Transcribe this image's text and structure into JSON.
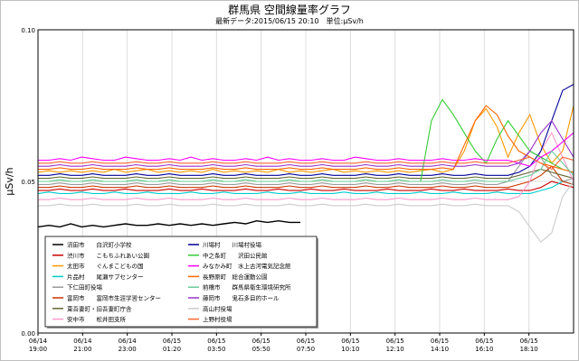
{
  "page": {
    "title": "群馬県 空間線量率グラフ",
    "subtitle": "最新データ:2015/06/15 20:10　単位:μSv/h"
  },
  "colors": {
    "background": "#ffffff",
    "grid": "#dcdcdc",
    "axis": "#000000"
  },
  "chart_data": {
    "type": "line",
    "title": "群馬県 空間線量率グラフ",
    "subtitle": "最新データ:2015/06/15 20:10　単位:μSv/h",
    "ylabel": "μSv/h",
    "xlabel": "",
    "ylim": [
      0.0,
      0.1
    ],
    "yticks": [
      "0.00",
      "0.05",
      "0.10"
    ],
    "grid": true,
    "legend_position": "bottom-left",
    "xticks": [
      {
        "date": "06/14",
        "time": "19:00"
      },
      {
        "date": "06/14",
        "time": "21:00"
      },
      {
        "date": "06/14",
        "time": "23:00"
      },
      {
        "date": "06/15",
        "time": "01:20"
      },
      {
        "date": "06/15",
        "time": "03:50"
      },
      {
        "date": "06/15",
        "time": "05:50"
      },
      {
        "date": "06/15",
        "time": "07:50"
      },
      {
        "date": "06/15",
        "time": "10:10"
      },
      {
        "date": "06/15",
        "time": "12:10"
      },
      {
        "date": "06/15",
        "time": "14:10"
      },
      {
        "date": "06/15",
        "time": "16:10"
      },
      {
        "date": "06/15",
        "time": "18:10"
      }
    ],
    "series": [
      {
        "name": "沼田市　　白沢町小学校",
        "color": "#000000",
        "values": [
          0.035,
          0.0355,
          0.035,
          0.036,
          0.035,
          0.0355,
          0.035,
          0.0355,
          0.036,
          0.0355,
          0.0355,
          0.036,
          0.0355,
          0.036,
          0.0355,
          0.036,
          0.0355,
          0.036,
          0.0365,
          0.036,
          0.037,
          0.0365,
          0.037,
          0.0365,
          0.0365,
          null,
          null,
          null,
          null,
          null,
          null,
          null,
          null,
          null,
          null,
          null,
          null,
          null,
          null,
          null,
          null,
          null,
          null,
          null,
          null,
          null,
          null,
          null,
          null,
          null
        ]
      },
      {
        "name": "渋川市　　こもちふれあい公園",
        "color": "#cc0000",
        "values": [
          0.047,
          0.047,
          0.0475,
          0.047,
          0.047,
          0.0475,
          0.047,
          0.047,
          0.0475,
          0.047,
          0.047,
          0.047,
          0.0475,
          0.047,
          0.047,
          0.0475,
          0.047,
          0.047,
          0.047,
          0.0475,
          0.047,
          0.047,
          0.0475,
          0.047,
          0.047,
          0.0475,
          0.047,
          0.047,
          0.0475,
          0.047,
          0.047,
          0.047,
          0.0475,
          0.047,
          0.047,
          0.047,
          0.0475,
          0.047,
          0.047,
          0.0475,
          0.047,
          0.047,
          0.047,
          0.0475,
          0.047,
          0.047,
          0.048,
          0.05,
          0.049,
          0.048
        ]
      },
      {
        "name": "太田市　　ぐんまこどもの国",
        "color": "#ff9900",
        "values": [
          0.053,
          0.0535,
          0.053,
          0.0535,
          0.053,
          0.0535,
          0.053,
          0.054,
          0.053,
          0.0535,
          0.054,
          0.053,
          0.0535,
          0.053,
          0.0535,
          0.053,
          0.054,
          0.053,
          0.0535,
          0.053,
          0.0535,
          0.053,
          0.054,
          0.053,
          0.0535,
          0.053,
          0.0535,
          0.054,
          0.053,
          0.0535,
          0.053,
          0.0535,
          0.053,
          0.0535,
          0.053,
          0.0535,
          0.054,
          0.053,
          0.054,
          0.06,
          0.07,
          0.074,
          0.068,
          0.058,
          0.066,
          0.072,
          0.062,
          0.056,
          0.06,
          0.075
        ]
      },
      {
        "name": "片品村　　尾瀬サブセンター",
        "color": "#00cccc",
        "values": [
          0.046,
          0.0465,
          0.046,
          0.046,
          0.0465,
          0.046,
          0.046,
          0.0465,
          0.046,
          0.046,
          0.0465,
          0.046,
          0.046,
          0.046,
          0.0465,
          0.046,
          0.046,
          0.0465,
          0.046,
          0.046,
          0.046,
          0.0465,
          0.046,
          0.046,
          0.0465,
          0.046,
          0.046,
          0.046,
          0.0465,
          0.046,
          0.046,
          0.0465,
          0.046,
          0.046,
          0.046,
          0.0465,
          0.046,
          0.046,
          0.0465,
          0.046,
          0.046,
          0.046,
          0.0465,
          0.046,
          0.046,
          0.046,
          0.047,
          0.048,
          0.05,
          0.049
        ]
      },
      {
        "name": "下仁田町役場",
        "color": "#999999",
        "values": [
          0.049,
          0.049,
          0.0495,
          0.049,
          0.049,
          0.0495,
          0.049,
          0.049,
          0.049,
          0.0495,
          0.049,
          0.049,
          0.0495,
          0.049,
          0.049,
          0.049,
          0.0495,
          0.049,
          0.049,
          0.0495,
          0.049,
          0.049,
          0.049,
          0.0495,
          0.049,
          0.049,
          0.0495,
          0.049,
          0.049,
          0.049,
          0.0495,
          0.049,
          0.049,
          0.0495,
          0.049,
          0.049,
          0.049,
          0.0495,
          0.049,
          0.049,
          0.0495,
          0.049,
          0.049,
          0.05,
          0.055,
          0.06,
          0.058,
          0.052,
          0.05,
          0.051
        ]
      },
      {
        "name": "富岡市　　富岡市生涯学習センター",
        "color": "#cc3300",
        "values": [
          0.048,
          0.048,
          0.0485,
          0.048,
          0.048,
          0.0485,
          0.048,
          0.048,
          0.048,
          0.0485,
          0.048,
          0.048,
          0.0485,
          0.048,
          0.048,
          0.048,
          0.0485,
          0.048,
          0.048,
          0.0485,
          0.048,
          0.048,
          0.048,
          0.0485,
          0.048,
          0.048,
          0.0485,
          0.048,
          0.048,
          0.048,
          0.0485,
          0.048,
          0.048,
          0.0485,
          0.048,
          0.048,
          0.048,
          0.0485,
          0.048,
          0.048,
          0.0485,
          0.048,
          0.048,
          0.048,
          0.049,
          0.05,
          0.052,
          0.055,
          0.05,
          0.049
        ]
      },
      {
        "name": "東吾妻町・旧吾妻町庁舎",
        "color": "#666633",
        "values": [
          0.051,
          0.051,
          0.0515,
          0.051,
          0.051,
          0.0515,
          0.051,
          0.051,
          0.051,
          0.0515,
          0.051,
          0.051,
          0.0515,
          0.051,
          0.051,
          0.051,
          0.0515,
          0.051,
          0.051,
          0.0515,
          0.051,
          0.051,
          0.051,
          0.0515,
          0.051,
          0.051,
          0.0515,
          0.051,
          0.051,
          0.051,
          0.0515,
          0.051,
          0.051,
          0.0515,
          0.051,
          0.051,
          0.051,
          0.0515,
          0.051,
          0.051,
          0.0515,
          0.051,
          0.051,
          0.051,
          0.052,
          0.053,
          0.054,
          0.053,
          0.052,
          0.051
        ]
      },
      {
        "name": "安中市　　松井田支所",
        "color": "#ff99cc",
        "values": [
          0.044,
          0.044,
          0.0445,
          0.044,
          0.044,
          0.0445,
          0.044,
          0.044,
          0.044,
          0.0445,
          0.044,
          0.044,
          0.0445,
          0.044,
          0.044,
          0.044,
          0.0445,
          0.044,
          0.044,
          0.0445,
          0.044,
          0.044,
          0.044,
          0.0445,
          0.044,
          0.044,
          0.0445,
          0.044,
          0.044,
          0.044,
          0.0445,
          0.044,
          0.044,
          0.0445,
          0.044,
          0.044,
          0.044,
          0.0445,
          0.044,
          0.044,
          0.0445,
          0.044,
          0.044,
          0.044,
          0.045,
          0.05,
          0.06,
          0.066,
          0.058,
          0.05
        ]
      },
      {
        "name": "川場村　　川場村役場",
        "color": "#000099",
        "values": [
          0.052,
          0.052,
          0.0525,
          0.052,
          0.052,
          0.0525,
          0.052,
          0.052,
          0.052,
          0.0525,
          0.052,
          0.052,
          0.0525,
          0.052,
          0.052,
          0.052,
          0.0525,
          0.052,
          0.052,
          0.0525,
          0.052,
          0.052,
          0.052,
          0.0525,
          0.052,
          0.052,
          0.0525,
          0.052,
          0.052,
          0.052,
          0.0525,
          0.052,
          0.052,
          0.0525,
          0.052,
          0.052,
          0.052,
          0.0525,
          0.052,
          0.052,
          0.0525,
          0.052,
          0.052,
          0.052,
          0.053,
          0.055,
          0.06,
          0.07,
          0.08,
          0.082
        ]
      },
      {
        "name": "中之条町　　沢田公民館",
        "color": "#33cc33",
        "values": [
          0.05,
          0.05,
          0.0505,
          0.05,
          0.05,
          0.0505,
          0.05,
          0.05,
          0.05,
          0.0505,
          0.05,
          0.05,
          0.0505,
          0.05,
          0.05,
          0.05,
          0.0505,
          0.05,
          0.05,
          0.0505,
          0.05,
          0.05,
          0.05,
          0.0505,
          0.05,
          0.05,
          0.0505,
          0.05,
          0.05,
          0.05,
          0.0505,
          0.05,
          0.05,
          0.0505,
          0.05,
          0.05,
          0.07,
          0.077,
          0.072,
          0.066,
          0.06,
          0.056,
          0.064,
          0.07,
          0.065,
          0.06,
          0.058,
          0.056,
          0.054,
          0.053
        ]
      },
      {
        "name": "みなかみ町　水上古河電気記念館",
        "color": "#ff00ff",
        "values": [
          0.057,
          0.057,
          0.0575,
          0.057,
          0.058,
          0.0575,
          0.057,
          0.057,
          0.058,
          0.0575,
          0.057,
          0.057,
          0.0575,
          0.057,
          0.058,
          0.057,
          0.0575,
          0.057,
          0.057,
          0.0575,
          0.057,
          0.058,
          0.057,
          0.0575,
          0.057,
          0.057,
          0.0575,
          0.057,
          0.057,
          0.058,
          0.0575,
          0.057,
          0.057,
          0.0575,
          0.057,
          0.057,
          0.057,
          0.0575,
          0.057,
          0.057,
          0.0575,
          0.057,
          0.057,
          0.057,
          0.056,
          0.055,
          0.058,
          0.06,
          0.063,
          0.066
        ]
      },
      {
        "name": "長野原町　総合運動公園",
        "color": "#ff6600",
        "values": [
          0.054,
          0.054,
          0.0545,
          0.054,
          0.054,
          0.0545,
          0.054,
          0.054,
          0.054,
          0.0545,
          0.054,
          0.054,
          0.0545,
          0.054,
          0.054,
          0.054,
          0.0545,
          0.054,
          0.054,
          0.0545,
          0.054,
          0.054,
          0.054,
          0.0545,
          0.054,
          0.054,
          0.0545,
          0.054,
          0.054,
          0.054,
          0.0545,
          0.054,
          0.054,
          0.0545,
          0.054,
          0.054,
          0.054,
          0.0545,
          0.054,
          0.062,
          0.07,
          0.075,
          0.072,
          0.065,
          0.06,
          0.058,
          0.056,
          0.055,
          0.054,
          0.053
        ]
      },
      {
        "name": "前橋市　　群馬県衛生環境研究所",
        "color": "#66cc99",
        "values": [
          0.05,
          0.05,
          0.0505,
          0.05,
          0.05,
          0.0505,
          0.05,
          0.05,
          0.05,
          0.0505,
          0.05,
          0.05,
          0.0505,
          0.05,
          0.05,
          0.05,
          0.0505,
          0.05,
          0.05,
          0.0505,
          0.05,
          0.05,
          0.05,
          0.0505,
          0.05,
          0.05,
          0.0505,
          0.05,
          0.05,
          0.05,
          0.0505,
          0.05,
          0.05,
          0.0505,
          0.05,
          0.05,
          0.05,
          0.0505,
          0.05,
          0.05,
          0.0505,
          0.05,
          0.05,
          0.05,
          0.051,
          0.052,
          0.054,
          0.06,
          0.056,
          0.052
        ]
      },
      {
        "name": "藤岡市　　鬼石多目的ホール",
        "color": "#9933cc",
        "values": [
          0.055,
          0.055,
          0.0555,
          0.055,
          0.055,
          0.0555,
          0.055,
          0.055,
          0.055,
          0.0555,
          0.055,
          0.055,
          0.0555,
          0.055,
          0.055,
          0.055,
          0.0555,
          0.055,
          0.055,
          0.0555,
          0.055,
          0.055,
          0.055,
          0.0555,
          0.055,
          0.055,
          0.0555,
          0.055,
          0.055,
          0.055,
          0.0555,
          0.055,
          0.055,
          0.0555,
          0.055,
          0.055,
          0.055,
          0.0555,
          0.055,
          0.055,
          0.0555,
          0.055,
          0.055,
          0.055,
          0.056,
          0.06,
          0.066,
          0.07,
          0.064,
          0.058
        ]
      },
      {
        "name": "高山村役場",
        "color": "#cccccc",
        "values": [
          0.042,
          0.042,
          0.0425,
          0.042,
          0.042,
          0.0425,
          0.042,
          0.042,
          0.042,
          0.0425,
          0.042,
          0.042,
          0.0425,
          0.042,
          0.042,
          0.042,
          0.0425,
          0.042,
          0.042,
          0.0425,
          0.042,
          0.042,
          0.042,
          0.0425,
          0.042,
          0.042,
          0.0425,
          0.042,
          0.042,
          0.042,
          0.0425,
          0.042,
          0.042,
          0.0425,
          0.042,
          0.042,
          0.042,
          0.0425,
          0.042,
          0.042,
          0.0425,
          0.042,
          0.042,
          0.042,
          0.04,
          0.035,
          0.03,
          0.033,
          0.045,
          0.05
        ]
      },
      {
        "name": "上野村役場",
        "color": "#ff6633",
        "values": [
          0.056,
          0.056,
          0.0565,
          0.056,
          0.056,
          0.0565,
          0.056,
          0.056,
          0.056,
          0.0565,
          0.056,
          0.056,
          0.0565,
          0.056,
          0.056,
          0.056,
          0.0565,
          0.056,
          0.056,
          0.0565,
          0.056,
          0.056,
          0.056,
          0.0565,
          0.056,
          0.056,
          0.0565,
          0.056,
          0.056,
          0.056,
          0.0565,
          0.056,
          0.056,
          0.0565,
          0.056,
          0.056,
          0.056,
          0.0565,
          0.056,
          0.056,
          0.0565,
          0.056,
          0.056,
          0.056,
          0.057,
          0.058,
          0.056,
          0.054,
          0.058,
          0.057
        ]
      }
    ]
  }
}
